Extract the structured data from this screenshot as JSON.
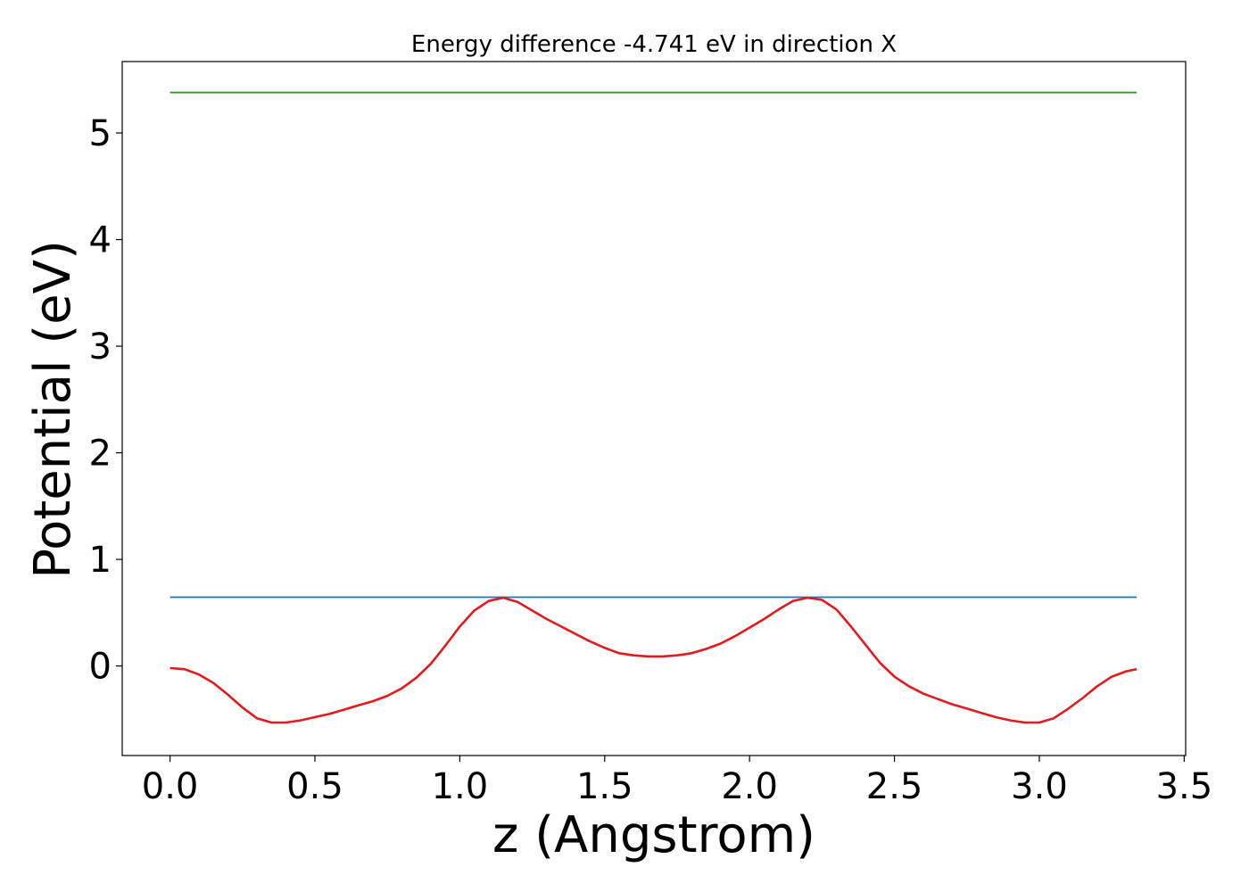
{
  "chart_data": {
    "type": "line",
    "title": "Energy difference -4.741 eV in direction X",
    "xlabel": "z (Angstrom)",
    "ylabel": "Potential (eV)",
    "xlim": [
      -0.165,
      3.505
    ],
    "ylim": [
      -0.84,
      5.67
    ],
    "xticks": [
      0.0,
      0.5,
      1.0,
      1.5,
      2.0,
      2.5,
      3.0,
      3.5
    ],
    "xtick_labels": [
      "0.0",
      "0.5",
      "1.0",
      "1.5",
      "2.0",
      "2.5",
      "3.0",
      "3.5"
    ],
    "yticks": [
      0,
      1,
      2,
      3,
      4,
      5
    ],
    "ytick_labels": [
      "0",
      "1",
      "2",
      "3",
      "4",
      "5"
    ],
    "grid": false,
    "legend": "none",
    "series": [
      {
        "color": "#2ca02c",
        "x": [
          0.0,
          3.336
        ],
        "y": [
          5.38,
          5.38
        ]
      },
      {
        "color": "#1f77b4",
        "x": [
          0.0,
          3.336
        ],
        "y": [
          0.645,
          0.645
        ]
      },
      {
        "color": "#e41a1c",
        "x": [
          0.0,
          0.05,
          0.1,
          0.15,
          0.2,
          0.25,
          0.3,
          0.35,
          0.4,
          0.45,
          0.5,
          0.55,
          0.6,
          0.65,
          0.7,
          0.75,
          0.8,
          0.85,
          0.9,
          0.95,
          1.0,
          1.05,
          1.1,
          1.15,
          1.2,
          1.25,
          1.3,
          1.35,
          1.4,
          1.45,
          1.5,
          1.55,
          1.6,
          1.65,
          1.7,
          1.75,
          1.8,
          1.85,
          1.9,
          1.95,
          2.0,
          2.05,
          2.1,
          2.15,
          2.2,
          2.25,
          2.3,
          2.35,
          2.4,
          2.45,
          2.5,
          2.55,
          2.6,
          2.65,
          2.7,
          2.75,
          2.8,
          2.85,
          2.9,
          2.95,
          3.0,
          3.05,
          3.1,
          3.15,
          3.2,
          3.25,
          3.3,
          3.336
        ],
        "y": [
          -0.02,
          -0.03,
          -0.08,
          -0.16,
          -0.27,
          -0.39,
          -0.49,
          -0.53,
          -0.53,
          -0.51,
          -0.48,
          -0.45,
          -0.41,
          -0.37,
          -0.33,
          -0.28,
          -0.21,
          -0.11,
          0.02,
          0.19,
          0.37,
          0.52,
          0.61,
          0.64,
          0.6,
          0.52,
          0.44,
          0.37,
          0.3,
          0.23,
          0.17,
          0.12,
          0.1,
          0.09,
          0.09,
          0.1,
          0.12,
          0.16,
          0.21,
          0.28,
          0.36,
          0.44,
          0.53,
          0.61,
          0.64,
          0.62,
          0.53,
          0.37,
          0.2,
          0.03,
          -0.1,
          -0.19,
          -0.26,
          -0.31,
          -0.36,
          -0.4,
          -0.44,
          -0.48,
          -0.51,
          -0.53,
          -0.53,
          -0.49,
          -0.4,
          -0.3,
          -0.19,
          -0.1,
          -0.05,
          -0.03
        ]
      }
    ]
  }
}
